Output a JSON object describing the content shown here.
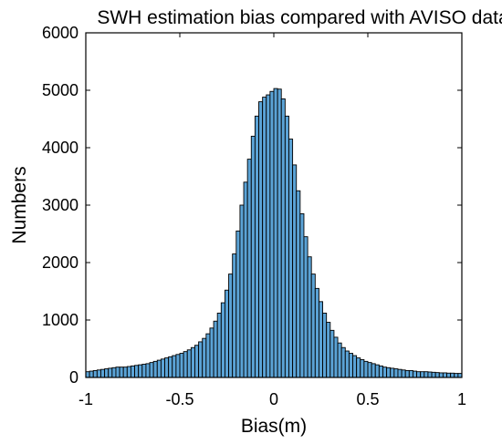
{
  "chart_data": {
    "type": "bar",
    "title": "SWH estimation bias compared with AVISO data",
    "xlabel": "Bias(m)",
    "ylabel": "Numbers",
    "xlim": [
      -1,
      1
    ],
    "ylim": [
      0,
      6000
    ],
    "xticks": [
      "-1",
      "-0.5",
      "0",
      "0.5",
      "1"
    ],
    "yticks": [
      "0",
      "1000",
      "2000",
      "3000",
      "4000",
      "5000",
      "6000"
    ],
    "grid": false,
    "bin_width": 0.02,
    "bin_start": -1,
    "bar_color": "#5BA3D6",
    "edge_color": "#000000",
    "values": [
      100,
      110,
      120,
      130,
      140,
      150,
      160,
      170,
      180,
      180,
      180,
      190,
      200,
      210,
      220,
      230,
      240,
      260,
      280,
      300,
      320,
      340,
      360,
      380,
      400,
      420,
      450,
      480,
      520,
      560,
      620,
      680,
      760,
      860,
      980,
      1120,
      1300,
      1520,
      1800,
      2150,
      2550,
      3000,
      3400,
      3800,
      4200,
      4550,
      4800,
      4880,
      4920,
      4980,
      5030,
      5020,
      4850,
      4550,
      4150,
      3700,
      3250,
      2850,
      2450,
      2100,
      1800,
      1550,
      1320,
      1120,
      960,
      820,
      700,
      600,
      520,
      460,
      420,
      380,
      340,
      310,
      280,
      260,
      240,
      220,
      200,
      180,
      170,
      160,
      150,
      140,
      130,
      120,
      120,
      110,
      100,
      100,
      100,
      95,
      90,
      85,
      80,
      80,
      75,
      75,
      70,
      70
    ]
  }
}
